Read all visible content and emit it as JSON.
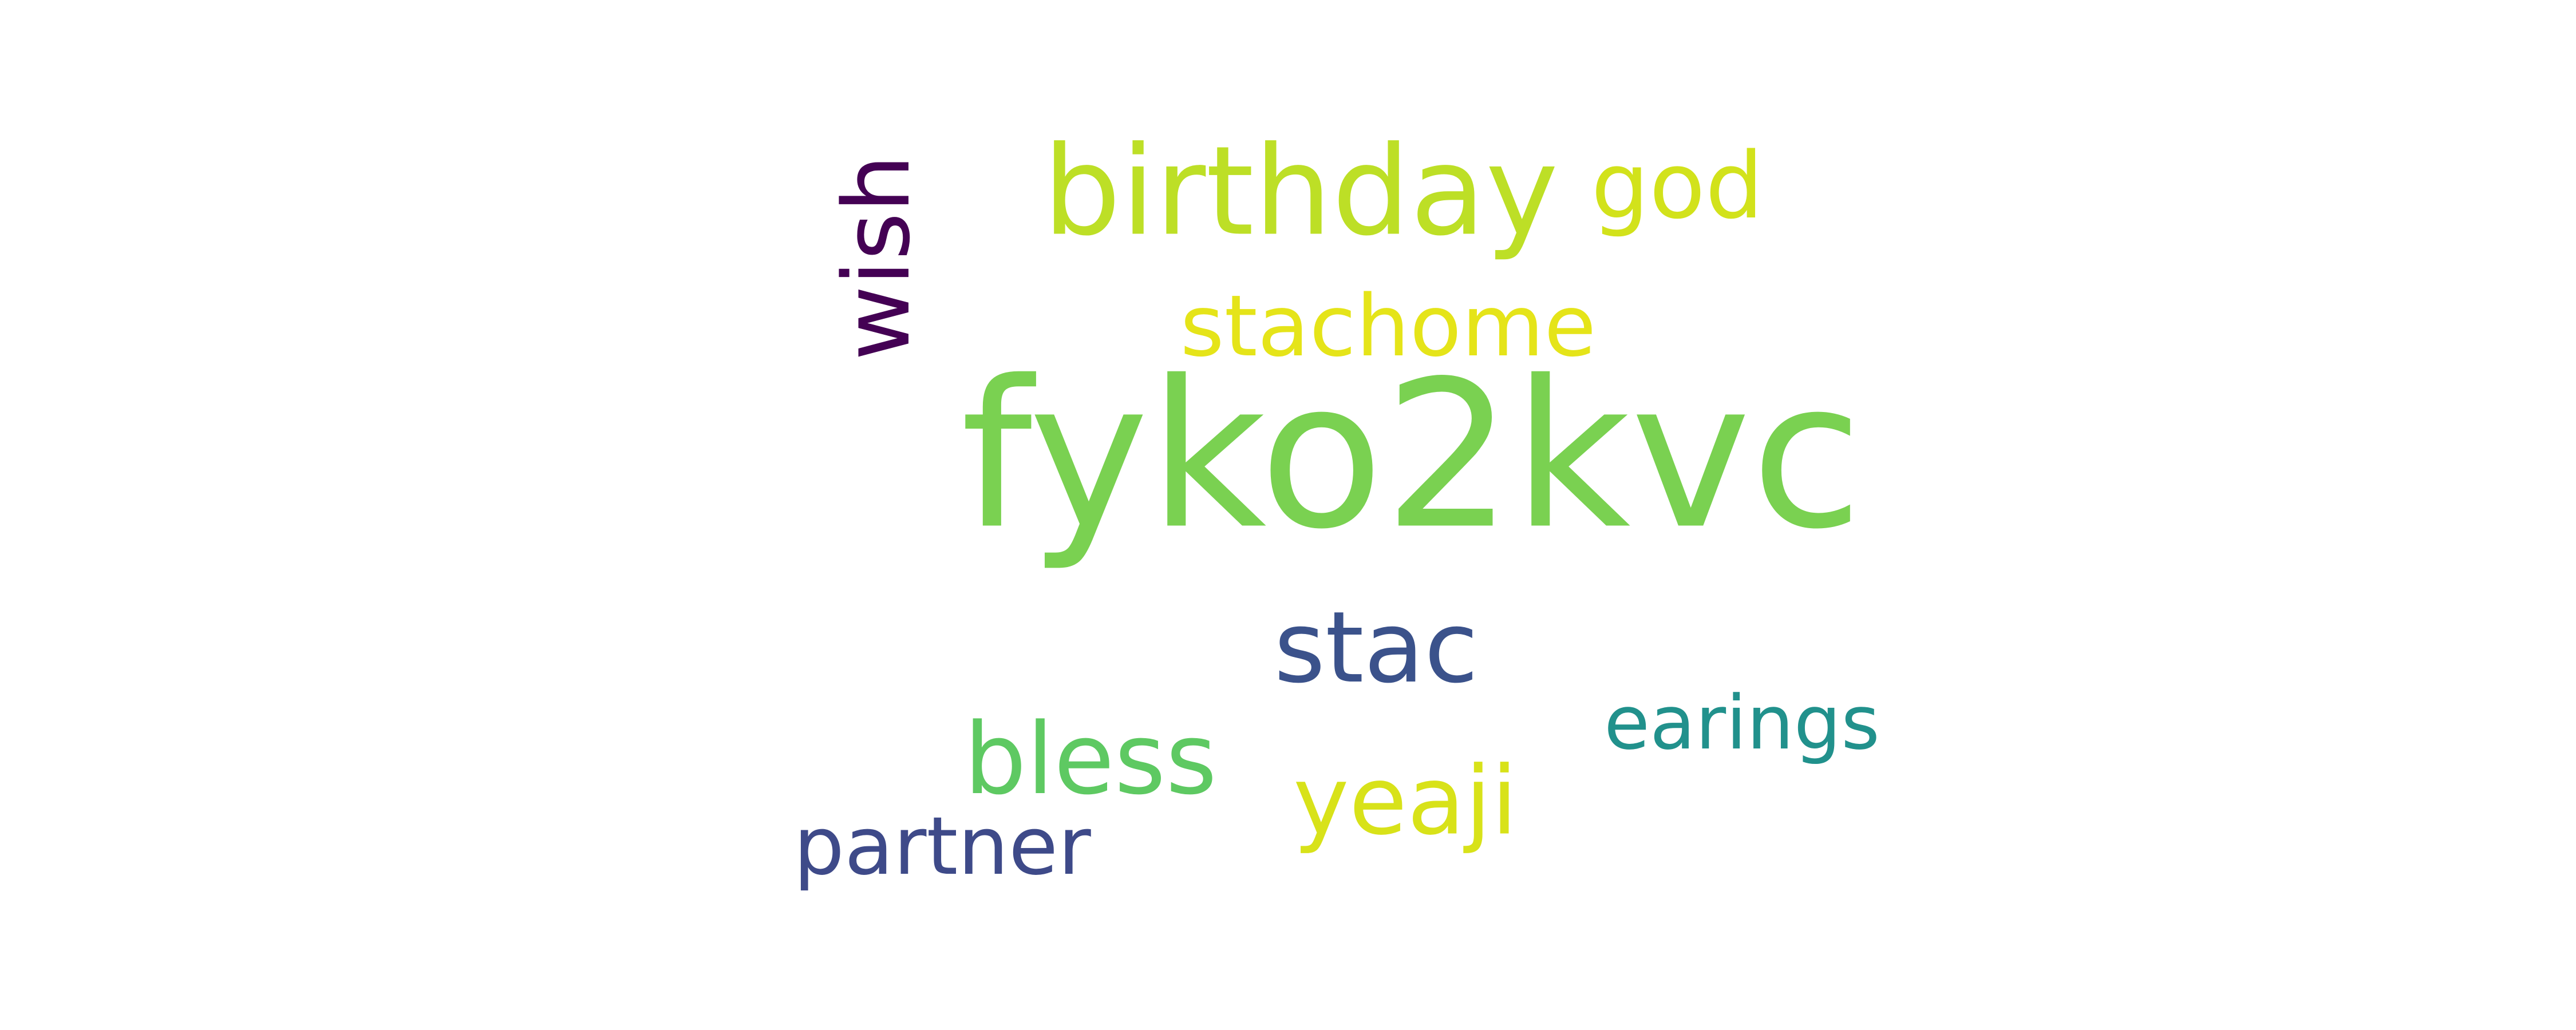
{
  "cloud": {
    "background": "#ffffff",
    "words": [
      {
        "text": "fyko2kvc",
        "color": "#7ad151"
      },
      {
        "text": "birthday",
        "color": "#bddf26"
      },
      {
        "text": "god",
        "color": "#d2e21b"
      },
      {
        "text": "stachome",
        "color": "#e5e419"
      },
      {
        "text": "wish",
        "color": "#440154"
      },
      {
        "text": "stac",
        "color": "#3b528b"
      },
      {
        "text": "earings",
        "color": "#21918c"
      },
      {
        "text": "bless",
        "color": "#5ec962"
      },
      {
        "text": "yeaji",
        "color": "#d8e219"
      },
      {
        "text": "partner",
        "color": "#3e4a89"
      }
    ]
  }
}
